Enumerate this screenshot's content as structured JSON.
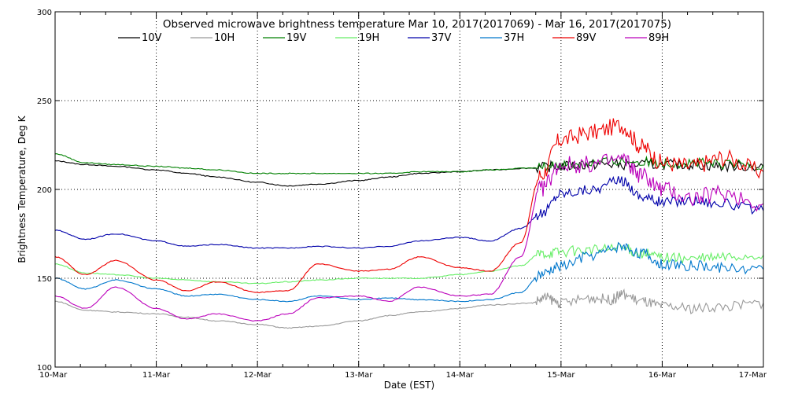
{
  "chart_data": {
    "type": "line",
    "title": "Observed microwave brightness temperature Mar 10, 2017(2017069) - Mar 16, 2017(2017075)",
    "xlabel": "Date (EST)",
    "ylabel": "Brightness Temperature, Deg K",
    "xlim": [
      0,
      7
    ],
    "ylim": [
      100,
      300
    ],
    "yticks": [
      100,
      150,
      200,
      250,
      300
    ],
    "xtick_labels": [
      "10-Mar",
      "11-Mar",
      "12-Mar",
      "13-Mar",
      "14-Mar",
      "15-Mar",
      "16-Mar",
      "17-Mar"
    ],
    "grid": {
      "x": true,
      "y": true,
      "style": "dotted"
    },
    "legend_position": "top",
    "series": [
      {
        "name": "10V",
        "color": "#000000",
        "values": [
          [
            0,
            216
          ],
          [
            0.3,
            214
          ],
          [
            0.6,
            213
          ],
          [
            1,
            211
          ],
          [
            1.3,
            209
          ],
          [
            1.6,
            207
          ],
          [
            2,
            204
          ],
          [
            2.3,
            202
          ],
          [
            2.6,
            203
          ],
          [
            3,
            205
          ],
          [
            3.3,
            207
          ],
          [
            3.6,
            209
          ],
          [
            4,
            210
          ],
          [
            4.3,
            211
          ],
          [
            4.7,
            212
          ],
          [
            5,
            213
          ],
          [
            5.3,
            214
          ],
          [
            5.6,
            214
          ],
          [
            6,
            214
          ],
          [
            6.3,
            214
          ],
          [
            6.6,
            213
          ],
          [
            7,
            213
          ]
        ]
      },
      {
        "name": "10H",
        "color": "#999999",
        "values": [
          [
            0,
            137
          ],
          [
            0.3,
            132
          ],
          [
            0.6,
            131
          ],
          [
            1,
            130
          ],
          [
            1.3,
            128
          ],
          [
            1.6,
            126
          ],
          [
            2,
            124
          ],
          [
            2.3,
            122
          ],
          [
            2.6,
            123
          ],
          [
            3,
            126
          ],
          [
            3.3,
            129
          ],
          [
            3.6,
            131
          ],
          [
            4,
            133
          ],
          [
            4.3,
            135
          ],
          [
            4.7,
            136
          ],
          [
            4.85,
            139
          ],
          [
            5,
            136
          ],
          [
            5.3,
            139
          ],
          [
            5.5,
            138
          ],
          [
            5.6,
            141
          ],
          [
            5.8,
            137
          ],
          [
            6,
            134
          ],
          [
            6.3,
            133
          ],
          [
            6.6,
            134
          ],
          [
            7,
            136
          ]
        ]
      },
      {
        "name": "19V",
        "color": "#008000",
        "values": [
          [
            0,
            220
          ],
          [
            0.3,
            215
          ],
          [
            0.6,
            214
          ],
          [
            1,
            213
          ],
          [
            1.3,
            212
          ],
          [
            1.6,
            211
          ],
          [
            2,
            209
          ],
          [
            2.3,
            209
          ],
          [
            2.6,
            209
          ],
          [
            3,
            209
          ],
          [
            3.3,
            209
          ],
          [
            3.6,
            210
          ],
          [
            4,
            210
          ],
          [
            4.3,
            211
          ],
          [
            4.7,
            212
          ],
          [
            5,
            214
          ],
          [
            5.3,
            215
          ],
          [
            5.6,
            216
          ],
          [
            6,
            215
          ],
          [
            6.3,
            215
          ],
          [
            6.6,
            214
          ],
          [
            7,
            214
          ]
        ]
      },
      {
        "name": "19H",
        "color": "#66ee66",
        "values": [
          [
            0,
            158
          ],
          [
            0.3,
            153
          ],
          [
            0.6,
            152
          ],
          [
            1,
            150
          ],
          [
            1.3,
            149
          ],
          [
            1.6,
            148
          ],
          [
            2,
            147
          ],
          [
            2.3,
            148
          ],
          [
            2.6,
            149
          ],
          [
            3,
            150
          ],
          [
            3.3,
            150
          ],
          [
            3.6,
            150
          ],
          [
            4,
            152
          ],
          [
            4.3,
            154
          ],
          [
            4.6,
            157
          ],
          [
            4.8,
            164
          ],
          [
            5,
            165
          ],
          [
            5.3,
            166
          ],
          [
            5.6,
            167
          ],
          [
            5.8,
            164
          ],
          [
            6,
            162
          ],
          [
            6.3,
            161
          ],
          [
            6.6,
            162
          ],
          [
            7,
            163
          ]
        ]
      },
      {
        "name": "37V",
        "color": "#0000aa",
        "values": [
          [
            0,
            177
          ],
          [
            0.3,
            172
          ],
          [
            0.6,
            175
          ],
          [
            1,
            171
          ],
          [
            1.3,
            168
          ],
          [
            1.6,
            169
          ],
          [
            2,
            167
          ],
          [
            2.3,
            167
          ],
          [
            2.6,
            168
          ],
          [
            3,
            167
          ],
          [
            3.3,
            168
          ],
          [
            3.6,
            171
          ],
          [
            4,
            173
          ],
          [
            4.3,
            171
          ],
          [
            4.6,
            178
          ],
          [
            4.8,
            186
          ],
          [
            5,
            198
          ],
          [
            5.3,
            200
          ],
          [
            5.6,
            205
          ],
          [
            5.8,
            196
          ],
          [
            6,
            193
          ],
          [
            6.3,
            194
          ],
          [
            6.6,
            192
          ],
          [
            7,
            188
          ]
        ]
      },
      {
        "name": "37H",
        "color": "#0077cc",
        "values": [
          [
            0,
            150
          ],
          [
            0.3,
            144
          ],
          [
            0.6,
            149
          ],
          [
            1,
            144
          ],
          [
            1.3,
            140
          ],
          [
            1.6,
            141
          ],
          [
            2,
            138
          ],
          [
            2.3,
            137
          ],
          [
            2.6,
            140
          ],
          [
            3,
            138
          ],
          [
            3.3,
            139
          ],
          [
            3.6,
            138
          ],
          [
            4,
            137
          ],
          [
            4.3,
            138
          ],
          [
            4.6,
            142
          ],
          [
            4.8,
            152
          ],
          [
            5,
            157
          ],
          [
            5.3,
            163
          ],
          [
            5.6,
            168
          ],
          [
            5.8,
            164
          ],
          [
            6,
            158
          ],
          [
            6.3,
            157
          ],
          [
            6.6,
            156
          ],
          [
            7,
            155
          ]
        ]
      },
      {
        "name": "89V",
        "color": "#ee0000",
        "values": [
          [
            0,
            162
          ],
          [
            0.3,
            152
          ],
          [
            0.6,
            160
          ],
          [
            1,
            149
          ],
          [
            1.3,
            143
          ],
          [
            1.6,
            148
          ],
          [
            2,
            142
          ],
          [
            2.3,
            143
          ],
          [
            2.6,
            158
          ],
          [
            3,
            154
          ],
          [
            3.3,
            155
          ],
          [
            3.6,
            162
          ],
          [
            4,
            156
          ],
          [
            4.3,
            154
          ],
          [
            4.6,
            170
          ],
          [
            4.8,
            208
          ],
          [
            5,
            228
          ],
          [
            5.3,
            232
          ],
          [
            5.6,
            236
          ],
          [
            5.8,
            224
          ],
          [
            6,
            215
          ],
          [
            6.3,
            213
          ],
          [
            6.6,
            218
          ],
          [
            7,
            210
          ]
        ]
      },
      {
        "name": "89H",
        "color": "#bb00bb",
        "values": [
          [
            0,
            140
          ],
          [
            0.3,
            133
          ],
          [
            0.6,
            145
          ],
          [
            1,
            133
          ],
          [
            1.3,
            127
          ],
          [
            1.6,
            130
          ],
          [
            2,
            126
          ],
          [
            2.3,
            130
          ],
          [
            2.6,
            139
          ],
          [
            3,
            140
          ],
          [
            3.3,
            137
          ],
          [
            3.6,
            145
          ],
          [
            4,
            140
          ],
          [
            4.3,
            141
          ],
          [
            4.6,
            162
          ],
          [
            4.8,
            200
          ],
          [
            5,
            214
          ],
          [
            5.3,
            214
          ],
          [
            5.6,
            217
          ],
          [
            5.8,
            208
          ],
          [
            6,
            200
          ],
          [
            6.3,
            195
          ],
          [
            6.6,
            198
          ],
          [
            7,
            192
          ]
        ]
      }
    ]
  }
}
